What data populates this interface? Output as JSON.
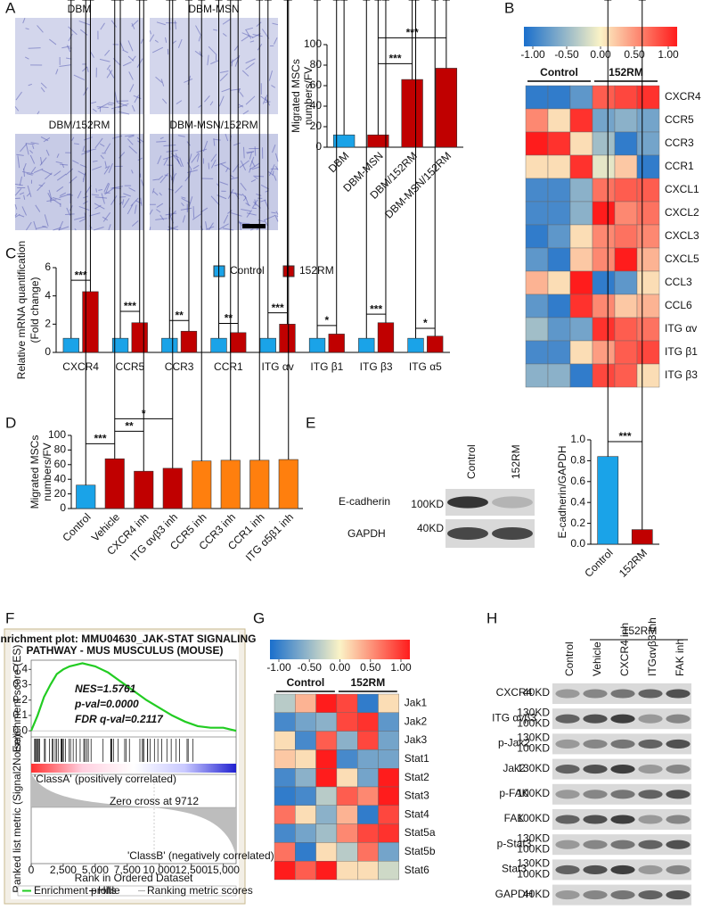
{
  "panel_labels": [
    "A",
    "B",
    "C",
    "D",
    "E",
    "F",
    "G",
    "H"
  ],
  "micrographs": [
    "DBM",
    "DBM-MSN",
    "DBM/152RM",
    "DBM-MSN/152RM"
  ],
  "blot_E": {
    "lanes": [
      "Control",
      "152RM"
    ],
    "rows": [
      "E-cadherin",
      "GAPDH"
    ],
    "markers": [
      "100KD",
      "40KD"
    ]
  },
  "blot_H": {
    "group": "152RM",
    "lanes": [
      "Control",
      "Vehicle",
      "CXCR4 inh",
      "ITGαvβ3 inh",
      "FAK inh"
    ],
    "rows": [
      {
        "name": "CXCR4",
        "markers": [
          "40KD"
        ]
      },
      {
        "name": "ITG αvβ3",
        "markers": [
          "130KD",
          "100KD"
        ]
      },
      {
        "name": "p-Jak2",
        "markers": [
          "130KD",
          "100KD"
        ]
      },
      {
        "name": "Jak2",
        "markers": [
          "130KD"
        ]
      },
      {
        "name": "p-FAK",
        "markers": [
          "100KD"
        ]
      },
      {
        "name": "FAK",
        "markers": [
          "100KD"
        ]
      },
      {
        "name": "p-Stat3",
        "markers": [
          "130KD",
          "100KD"
        ]
      },
      {
        "name": "Stat3",
        "markers": [
          "130KD",
          "100KD"
        ]
      },
      {
        "name": "GAPDH",
        "markers": [
          "40KD"
        ]
      }
    ]
  },
  "chart_data": [
    {
      "type": "bar",
      "ylabel": [
        "Migrated MSCs",
        "numbers/FV"
      ],
      "categories": [
        "DBM",
        "DBM-MSN",
        "DBM/152RM",
        "DBM-MSN/152RM"
      ],
      "values": [
        12,
        12,
        66,
        77
      ],
      "errors": [
        3,
        2,
        5,
        7
      ],
      "colors": [
        "#1aa3e8",
        "#c00000",
        "#c00000",
        "#c00000"
      ],
      "ylim": [
        0,
        100
      ],
      "yticks": [
        0,
        20,
        40,
        60,
        80,
        100
      ],
      "significance": [
        {
          "from": 1,
          "to": 2,
          "label": "***"
        },
        {
          "from": 1,
          "to": 3,
          "label": "***"
        }
      ]
    },
    {
      "type": "heatmap",
      "groups": [
        "Control",
        "152RM"
      ],
      "rows": [
        "CXCR4",
        "CCR5",
        "CCR3",
        "CCR1",
        "CXCL1",
        "CXCL2",
        "CXCL3",
        "CXCL5",
        "CCL3",
        "CCL6",
        "ITG αv",
        "ITG β1",
        "ITG β3"
      ],
      "values": [
        [
          -0.9,
          -0.9,
          -0.7,
          0.7,
          0.8,
          0.9
        ],
        [
          0.5,
          0.1,
          0.9,
          -0.6,
          -0.5,
          -0.6
        ],
        [
          1.0,
          0.9,
          0.1,
          -0.4,
          -0.9,
          -0.6
        ],
        [
          0.1,
          0.1,
          0.9,
          -0.1,
          0.2,
          -0.9
        ],
        [
          -0.8,
          -0.8,
          -0.5,
          0.6,
          0.7,
          0.7
        ],
        [
          -0.8,
          -0.8,
          -0.5,
          1.0,
          0.5,
          0.6
        ],
        [
          -0.9,
          -0.7,
          0.1,
          0.5,
          0.6,
          0.5
        ],
        [
          -0.7,
          -0.9,
          0.2,
          0.5,
          1.0,
          0.3
        ],
        [
          0.3,
          0.1,
          1.0,
          -0.9,
          -0.7,
          0.1
        ],
        [
          -0.7,
          -0.9,
          0.9,
          0.5,
          0.2,
          0.3
        ],
        [
          -0.4,
          -0.7,
          -0.6,
          0.9,
          0.7,
          0.6
        ],
        [
          -0.8,
          -0.8,
          0.1,
          0.4,
          0.7,
          0.8
        ],
        [
          -0.5,
          -0.5,
          -0.9,
          0.8,
          0.7,
          0.1
        ]
      ],
      "clim": [
        -1,
        1
      ],
      "cticks": [
        {
          "value": -1,
          "label": "-1.00"
        },
        {
          "value": -0.5,
          "label": "-0.50"
        },
        {
          "value": 0,
          "label": "0.00"
        },
        {
          "value": 0.5,
          "label": "0.50"
        },
        {
          "value": 1,
          "label": "1.00"
        }
      ],
      "colormap": [
        "#1a6fcc",
        "#fbf3c6",
        "#ff1c1c"
      ]
    },
    {
      "type": "bar",
      "ylabel": [
        "Relative mRNA quantification",
        "(Fold change)"
      ],
      "categories": [
        "CXCR4",
        "CCR5",
        "CCR3",
        "CCR1",
        "ITG αv",
        "ITG β1",
        "ITG β3",
        "ITG α5"
      ],
      "series": [
        {
          "name": "Control",
          "color": "#1aa3e8",
          "values": [
            1,
            1,
            1,
            1,
            1,
            1,
            1,
            1
          ],
          "errors": [
            0.08,
            0.08,
            0.08,
            0.08,
            0.08,
            0.08,
            0.08,
            0.08
          ]
        },
        {
          "name": "152RM",
          "color": "#c00000",
          "values": [
            4.3,
            2.1,
            1.5,
            1.4,
            2.0,
            1.3,
            2.1,
            1.15
          ],
          "errors": [
            0.3,
            0.3,
            0.25,
            0.15,
            0.3,
            0.1,
            0.1,
            0.05
          ]
        }
      ],
      "significance": [
        "***",
        "***",
        "**",
        "**",
        "***",
        "*",
        "***",
        "*"
      ],
      "ylim": [
        0,
        6
      ],
      "yticks": [
        0,
        2,
        4,
        6
      ]
    },
    {
      "type": "bar",
      "ylabel": [
        "Migrated MSCs",
        "numbers/FV"
      ],
      "categories": [
        "Control",
        "Vehicle",
        "CXCR4 inh",
        "ITG αvβ3 inh",
        "CCR5 inh",
        "CCR3 inh",
        "CCR1 inh",
        "ITG α5β1 inh"
      ],
      "values": [
        32,
        68,
        51,
        55,
        65,
        66,
        66,
        67
      ],
      "errors": [
        5,
        6,
        4,
        2,
        5,
        3,
        4,
        2
      ],
      "colors": [
        "#1aa3e8",
        "#c00000",
        "#c00000",
        "#c00000",
        "#ff7f0e",
        "#ff7f0e",
        "#ff7f0e",
        "#ff7f0e"
      ],
      "ylim": [
        0,
        100
      ],
      "yticks": [
        0,
        20,
        40,
        60,
        80,
        100
      ],
      "significance": [
        {
          "from": 0,
          "to": 1,
          "label": "***"
        },
        {
          "from": 1,
          "to": 2,
          "label": "**"
        },
        {
          "from": 1,
          "to": 3,
          "label": "*"
        }
      ]
    },
    {
      "type": "bar",
      "ylabel": [
        "E-cadherin/GAPDH"
      ],
      "categories": [
        "Control",
        "152RM"
      ],
      "values": [
        0.84,
        0.14
      ],
      "errors": [
        0.04,
        0.03
      ],
      "colors": [
        "#1aa3e8",
        "#c00000"
      ],
      "ylim": [
        0,
        1
      ],
      "yticks": [
        {
          "value": 0,
          "label": "0.0"
        },
        0.2,
        0.4,
        0.6,
        0.8,
        {
          "value": 1,
          "label": "1.0"
        }
      ],
      "significance": [
        {
          "from": 0,
          "to": 1,
          "label": "***"
        }
      ]
    },
    {
      "type": "line",
      "title": [
        "Enrichment plot: MMU04630_JAK-STAT SIGNALING",
        "PATHWAY - MUS MUSCULUS (MOUSE)"
      ],
      "ylabel": "Enrichment score (ES)",
      "y2label": "Ranked list metric (Signal2Noise)",
      "xlabel": "Rank in Ordered Dataset",
      "x": [
        0,
        500,
        1000,
        1500,
        2000,
        2500,
        3000,
        3500,
        4000,
        4500,
        5000,
        5500,
        6000,
        7000,
        8000,
        9000,
        10000,
        11000,
        12000,
        13000,
        14000,
        15000,
        15500,
        16000
      ],
      "series": [
        {
          "name": "Enrichment profile",
          "color": "#22cc22",
          "values": [
            0,
            0.1,
            0.22,
            0.3,
            0.37,
            0.4,
            0.42,
            0.43,
            0.44,
            0.43,
            0.42,
            0.4,
            0.38,
            0.32,
            0.26,
            0.2,
            0.15,
            0.1,
            0.06,
            0.03,
            0.02,
            0.02,
            0.01,
            0
          ]
        }
      ],
      "legend_extra": [
        "Hits",
        "Ranking metric scores"
      ],
      "annotations": [
        "NES=1.5761",
        "p-val=0.0000",
        "FDR q-val=0.2117"
      ],
      "notes": [
        "'ClassA' (positively correlated)",
        "Zero cross at 9712",
        "'ClassB' (negatively correlated)"
      ],
      "xlim": [
        0,
        16000
      ],
      "xticks": [
        0,
        {
          "value": 2500,
          "label": "2,500"
        },
        {
          "value": 5000,
          "label": "5,000"
        },
        {
          "value": 7500,
          "label": "7,500"
        },
        {
          "value": 10000,
          "label": "10,000"
        },
        {
          "value": 12500,
          "label": "12,500"
        },
        {
          "value": 15000,
          "label": "15,000"
        }
      ],
      "ylim": [
        -0.04,
        0.46
      ],
      "yticks": [
        {
          "value": 0,
          "label": "0.0"
        },
        0.1,
        0.2,
        0.3,
        0.4
      ]
    },
    {
      "type": "heatmap",
      "groups": [
        "Control",
        "152RM"
      ],
      "rows": [
        "Jak1",
        "Jak2",
        "Jak3",
        "Stat1",
        "Stat2",
        "Stat3",
        "Stat4",
        "Stat5a",
        "Stat5b",
        "Stat6"
      ],
      "values": [
        [
          -0.3,
          0.3,
          1.0,
          0.8,
          -0.9,
          0.1
        ],
        [
          -0.8,
          -0.6,
          -0.5,
          0.8,
          0.9,
          -0.7
        ],
        [
          0.1,
          -0.8,
          0.7,
          -0.5,
          0.8,
          -0.6
        ],
        [
          0.2,
          0.1,
          1.0,
          -0.8,
          -0.6,
          -0.6
        ],
        [
          -0.8,
          -0.5,
          1.0,
          0.1,
          -0.6,
          1.0
        ],
        [
          -0.9,
          -0.8,
          -0.3,
          0.7,
          0.5,
          1.0
        ],
        [
          0.6,
          0.1,
          -0.5,
          0.3,
          -0.9,
          0.8
        ],
        [
          -0.8,
          -0.6,
          -0.4,
          0.5,
          0.8,
          0.9
        ],
        [
          0.6,
          -0.9,
          0.1,
          -0.3,
          0.6,
          -0.6
        ],
        [
          1.0,
          0.7,
          1.0,
          0.1,
          0.1,
          -0.2
        ]
      ],
      "clim": [
        -1,
        1
      ],
      "cticks": [
        {
          "value": -1,
          "label": "-1.00"
        },
        {
          "value": -0.5,
          "label": "-0.50"
        },
        {
          "value": 0,
          "label": "0.00"
        },
        {
          "value": 0.5,
          "label": "0.50"
        },
        {
          "value": 1,
          "label": "1.00"
        }
      ],
      "colormap": [
        "#1a6fcc",
        "#fbf3c6",
        "#ff1c1c"
      ]
    }
  ]
}
